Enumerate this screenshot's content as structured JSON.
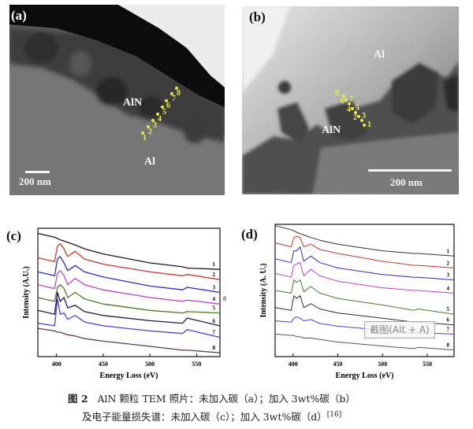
{
  "panel_a": {
    "label": "(a)",
    "phase_upper": "AlN",
    "phase_lower": "Al",
    "scale": "200 nm",
    "points": [
      "1",
      "2",
      "3",
      "4",
      "5",
      "6",
      "7",
      "8"
    ]
  },
  "panel_b": {
    "label": "(b)",
    "phase_upper": "Al",
    "phase_lower": "AlN",
    "scale": "200  nm",
    "points": [
      "1",
      "2",
      "3",
      "4",
      "5",
      "6",
      "7",
      "8"
    ]
  },
  "side_label_c": "8",
  "watermark": "截图(Alt + A)",
  "caption": {
    "fig": "图 2",
    "line1": "AlN 颗粒 TEM 照片：未加入碳（a）；加入 3wt%碳（b）",
    "line2": "及电子能量损失谱：未加入碳（c）；加入 3wt%碳（d）",
    "ref": "[16]"
  },
  "chart_data": [
    {
      "panel": "(c)",
      "type": "line",
      "xlabel": "Energy Loss (eV)",
      "ylabel": "Intensity (A.U.)",
      "xlim": [
        380,
        575
      ],
      "ylim": [
        0,
        10
      ],
      "xticks": [
        400,
        450,
        500,
        550
      ],
      "x": [
        380,
        398,
        401,
        404,
        408,
        412,
        420,
        430,
        450,
        500,
        535,
        540,
        575
      ],
      "series": [
        {
          "name": "1",
          "color": "#1a1a1a",
          "values": [
            9.6,
            9.3,
            9.2,
            9.1,
            9.0,
            8.9,
            8.7,
            8.4,
            8.0,
            7.3,
            7.0,
            6.9,
            6.8
          ]
        },
        {
          "name": "2",
          "color": "#c0392b",
          "values": [
            7.7,
            7.4,
            8.6,
            8.8,
            8.4,
            7.8,
            8.2,
            7.6,
            7.2,
            6.6,
            6.3,
            6.4,
            6.0
          ]
        },
        {
          "name": "3",
          "color": "#2b2bc8",
          "values": [
            6.6,
            6.3,
            7.6,
            7.8,
            7.3,
            6.7,
            7.1,
            6.6,
            6.2,
            5.5,
            5.2,
            5.4,
            5.0
          ]
        },
        {
          "name": "4",
          "color": "#c040c0",
          "values": [
            5.6,
            5.3,
            6.5,
            6.7,
            6.3,
            5.6,
            6.1,
            5.6,
            5.2,
            4.6,
            4.3,
            4.4,
            4.1
          ]
        },
        {
          "name": "5",
          "color": "#4a7a2a",
          "values": [
            4.6,
            4.3,
            5.4,
            5.6,
            5.3,
            4.6,
            5.0,
            4.5,
            4.1,
            3.6,
            3.4,
            3.5,
            3.4
          ]
        },
        {
          "name": "6",
          "color": "#1a1a4a",
          "values": [
            3.6,
            3.3,
            5.0,
            4.3,
            4.6,
            3.8,
            4.0,
            3.5,
            3.2,
            2.8,
            2.6,
            3.0,
            2.4
          ]
        },
        {
          "name": "7",
          "color": "#5a3ad0",
          "values": [
            2.6,
            2.4,
            4.5,
            3.3,
            3.4,
            2.9,
            3.2,
            2.7,
            2.4,
            2.0,
            1.8,
            2.1,
            1.5
          ]
        },
        {
          "name": "8",
          "color": "#5a3a5a",
          "values": [
            2.2,
            2.0,
            1.9,
            1.9,
            1.8,
            1.7,
            1.6,
            1.4,
            1.2,
            0.8,
            0.5,
            0.5,
            0.3
          ]
        }
      ]
    },
    {
      "panel": "(d)",
      "type": "line",
      "xlabel": "Energy Loss (eV)",
      "ylabel": "Intensity (A. U.)",
      "xlim": [
        380,
        580
      ],
      "ylim": [
        0,
        10
      ],
      "xticks": [
        400,
        450,
        500,
        550
      ],
      "x": [
        380,
        398,
        401,
        404,
        408,
        412,
        420,
        430,
        450,
        500,
        535,
        540,
        580
      ],
      "series": [
        {
          "name": "1",
          "color": "#333333",
          "values": [
            9.9,
            9.6,
            9.5,
            9.4,
            9.3,
            9.2,
            9.0,
            8.8,
            8.5,
            8.0,
            7.8,
            7.8,
            7.6
          ]
        },
        {
          "name": "2",
          "color": "#c0392b",
          "values": [
            8.6,
            8.3,
            9.0,
            9.1,
            9.0,
            8.3,
            8.5,
            8.1,
            7.8,
            7.2,
            6.9,
            6.9,
            6.7
          ]
        },
        {
          "name": "3",
          "color": "#2b2bc8",
          "values": [
            7.4,
            7.1,
            8.0,
            8.0,
            8.3,
            7.2,
            7.6,
            7.1,
            6.7,
            6.2,
            6.0,
            6.0,
            5.8
          ]
        },
        {
          "name": "4",
          "color": "#c040c0",
          "values": [
            6.3,
            6.0,
            6.9,
            7.0,
            7.1,
            6.1,
            6.6,
            6.1,
            5.7,
            5.2,
            5.0,
            5.0,
            4.8
          ]
        },
        {
          "name": "5",
          "color": "#4a7a2a",
          "values": [
            5.0,
            4.8,
            5.8,
            5.6,
            5.8,
            4.9,
            5.3,
            4.8,
            4.4,
            3.9,
            3.5,
            3.6,
            3.2
          ]
        },
        {
          "name": "6",
          "color": "#2a2a4a",
          "values": [
            3.7,
            3.5,
            4.6,
            4.4,
            4.6,
            3.7,
            4.0,
            3.6,
            3.3,
            2.9,
            2.6,
            2.6,
            2.4
          ]
        },
        {
          "name": "7",
          "color": "#5a3ad0",
          "values": [
            2.7,
            2.6,
            2.9,
            3.0,
            2.9,
            2.7,
            2.8,
            2.5,
            2.3,
            2.0,
            1.8,
            1.8,
            1.7
          ]
        },
        {
          "name": "8",
          "color": "#6a4a6a",
          "values": [
            1.7,
            1.6,
            1.6,
            1.5,
            1.5,
            1.4,
            1.4,
            1.3,
            1.1,
            0.8,
            0.6,
            0.7,
            0.5
          ]
        }
      ]
    }
  ]
}
